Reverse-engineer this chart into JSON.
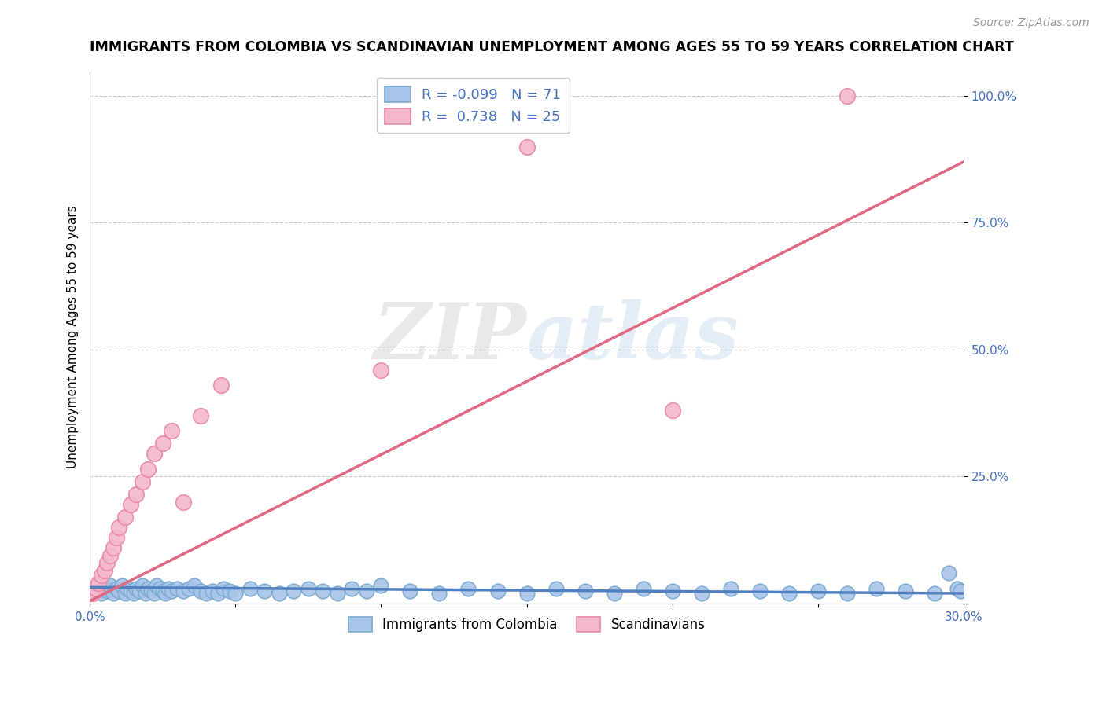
{
  "title": "IMMIGRANTS FROM COLOMBIA VS SCANDINAVIAN UNEMPLOYMENT AMONG AGES 55 TO 59 YEARS CORRELATION CHART",
  "source": "Source: ZipAtlas.com",
  "ylabel": "Unemployment Among Ages 55 to 59 years",
  "xlim": [
    0.0,
    0.3
  ],
  "ylim": [
    0.0,
    1.05
  ],
  "xticks": [
    0.0,
    0.05,
    0.1,
    0.15,
    0.2,
    0.25,
    0.3
  ],
  "xtick_labels": [
    "0.0%",
    "",
    "",
    "",
    "",
    "",
    "30.0%"
  ],
  "yticks": [
    0.0,
    0.25,
    0.5,
    0.75,
    1.0
  ],
  "ytick_labels": [
    "",
    "25.0%",
    "50.0%",
    "75.0%",
    "100.0%"
  ],
  "blue_color": "#a8c4e8",
  "blue_edge_color": "#7aaad0",
  "pink_color": "#f4b8cc",
  "pink_edge_color": "#e888a8",
  "trend_blue_color": "#5080c0",
  "trend_pink_color": "#e06880",
  "R_blue": -0.099,
  "N_blue": 71,
  "R_pink": 0.738,
  "N_pink": 25,
  "legend_label_blue": "Immigrants from Colombia",
  "legend_label_pink": "Scandinavians",
  "watermark_zip": "ZIP",
  "watermark_atlas": "atlas",
  "blue_scatter_x": [
    0.001,
    0.002,
    0.003,
    0.004,
    0.005,
    0.006,
    0.007,
    0.008,
    0.009,
    0.01,
    0.011,
    0.012,
    0.013,
    0.014,
    0.015,
    0.016,
    0.017,
    0.018,
    0.019,
    0.02,
    0.021,
    0.022,
    0.023,
    0.024,
    0.025,
    0.026,
    0.027,
    0.028,
    0.03,
    0.032,
    0.034,
    0.036,
    0.038,
    0.04,
    0.042,
    0.044,
    0.046,
    0.048,
    0.05,
    0.055,
    0.06,
    0.065,
    0.07,
    0.075,
    0.08,
    0.085,
    0.09,
    0.095,
    0.1,
    0.11,
    0.12,
    0.13,
    0.14,
    0.15,
    0.16,
    0.17,
    0.18,
    0.19,
    0.2,
    0.21,
    0.22,
    0.23,
    0.24,
    0.25,
    0.26,
    0.27,
    0.28,
    0.29,
    0.295,
    0.298,
    0.299
  ],
  "blue_scatter_y": [
    0.03,
    0.025,
    0.035,
    0.02,
    0.03,
    0.025,
    0.035,
    0.02,
    0.03,
    0.025,
    0.035,
    0.02,
    0.03,
    0.025,
    0.02,
    0.03,
    0.025,
    0.035,
    0.02,
    0.03,
    0.025,
    0.02,
    0.035,
    0.03,
    0.025,
    0.02,
    0.03,
    0.025,
    0.03,
    0.025,
    0.03,
    0.035,
    0.025,
    0.02,
    0.025,
    0.02,
    0.03,
    0.025,
    0.02,
    0.03,
    0.025,
    0.02,
    0.025,
    0.03,
    0.025,
    0.02,
    0.03,
    0.025,
    0.035,
    0.025,
    0.02,
    0.03,
    0.025,
    0.02,
    0.03,
    0.025,
    0.02,
    0.03,
    0.025,
    0.02,
    0.03,
    0.025,
    0.02,
    0.025,
    0.02,
    0.03,
    0.025,
    0.02,
    0.06,
    0.03,
    0.025
  ],
  "pink_scatter_x": [
    0.001,
    0.002,
    0.003,
    0.004,
    0.005,
    0.006,
    0.007,
    0.008,
    0.009,
    0.01,
    0.012,
    0.014,
    0.016,
    0.018,
    0.02,
    0.022,
    0.025,
    0.028,
    0.032,
    0.038,
    0.045,
    0.1,
    0.15,
    0.2,
    0.26
  ],
  "pink_scatter_y": [
    0.02,
    0.03,
    0.04,
    0.055,
    0.065,
    0.08,
    0.095,
    0.11,
    0.13,
    0.15,
    0.17,
    0.195,
    0.215,
    0.24,
    0.265,
    0.295,
    0.315,
    0.34,
    0.2,
    0.37,
    0.43,
    0.46,
    0.9,
    0.38,
    1.0
  ],
  "blue_trend_x": [
    0.0,
    0.3
  ],
  "blue_trend_y": [
    0.032,
    0.02
  ],
  "pink_trend_x": [
    0.0,
    0.3
  ],
  "pink_trend_y": [
    0.005,
    0.87
  ],
  "grid_color": "#cccccc",
  "axis_tick_color": "#4472c4",
  "background_color": "#ffffff",
  "title_fontsize": 12.5,
  "axis_label_fontsize": 11,
  "tick_fontsize": 11,
  "source_fontsize": 10
}
